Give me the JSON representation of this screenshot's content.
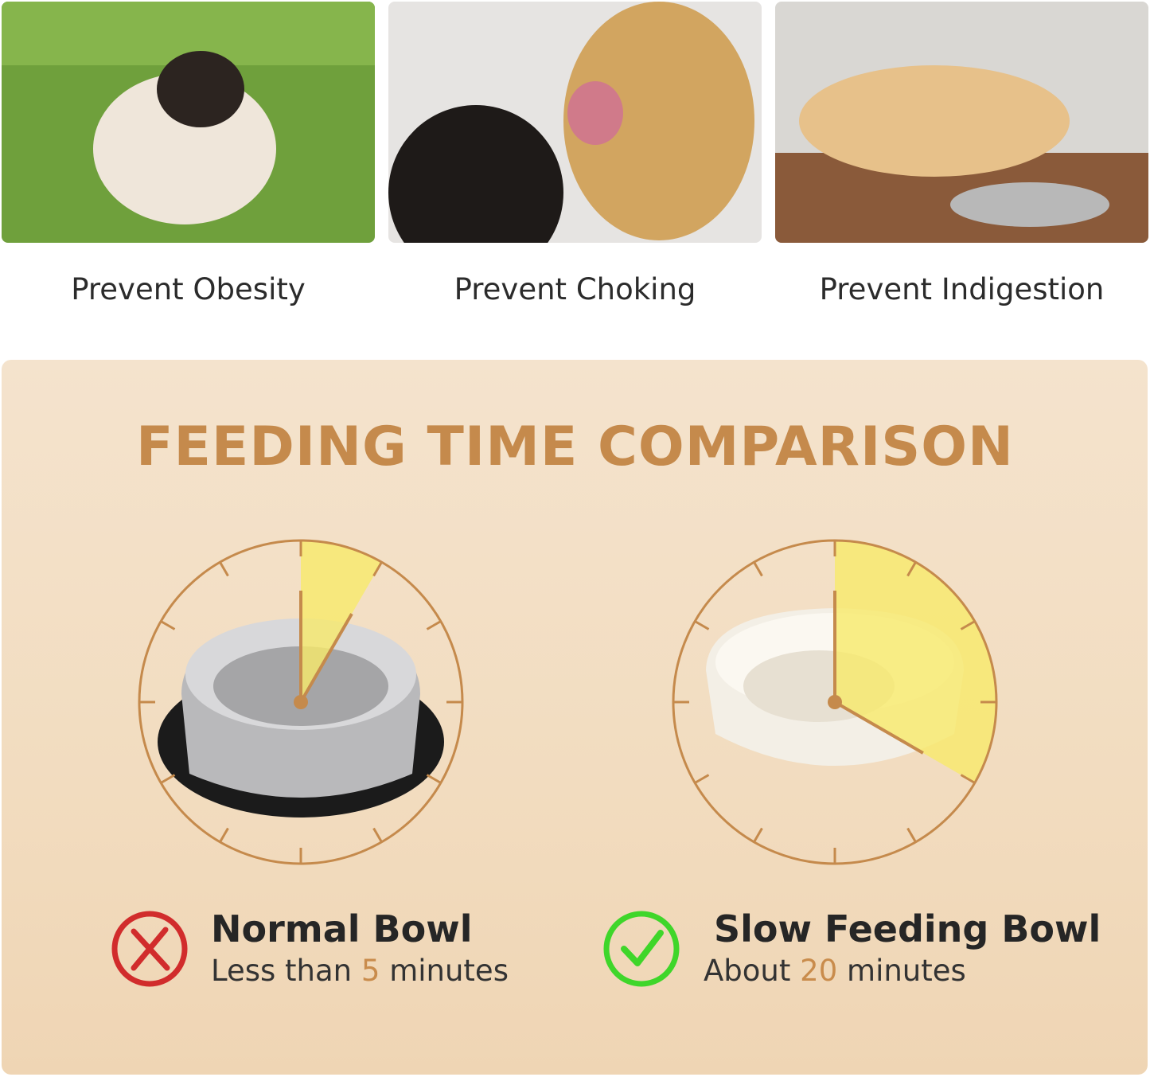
{
  "benefits": [
    {
      "label": "Prevent Obesity"
    },
    {
      "label": "Prevent Choking"
    },
    {
      "label": "Prevent Indigestion"
    }
  ],
  "comparison": {
    "title": "FEEDING TIME COMPARISON",
    "accent_color": "#c58a4c",
    "wedge_color": "#f7ea6a",
    "bowls": [
      {
        "name": "Normal Bowl",
        "prefix": "Less than",
        "number": "5",
        "suffix": "minutes",
        "minutes_shown": 5,
        "icon": "red-x-icon",
        "icon_color": "#d12c2c"
      },
      {
        "name": "Slow Feeding Bowl",
        "prefix": "About",
        "number": "20",
        "suffix": "minutes",
        "minutes_shown": 20,
        "icon": "green-check-icon",
        "icon_color": "#3fd62a"
      }
    ]
  }
}
